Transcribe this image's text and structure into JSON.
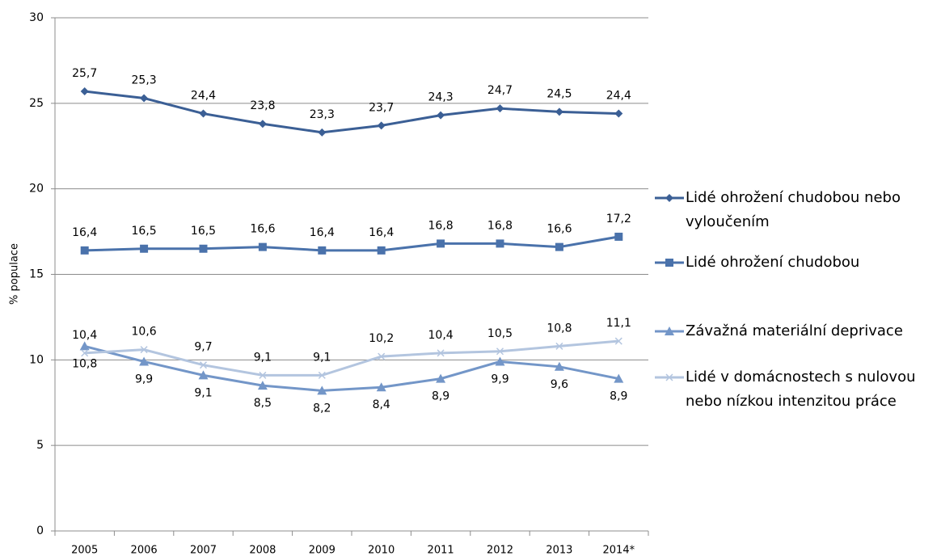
{
  "chart_data": {
    "type": "line",
    "y_label": "% populace",
    "categories": [
      "2005",
      "2006",
      "2007",
      "2008",
      "2009",
      "2010",
      "2011",
      "2012",
      "2013",
      "2014*"
    ],
    "series": [
      {
        "name": "Lidé ohrožení chudobou nebo vyloučením",
        "color": "#3b5f95",
        "marker": "diamond",
        "label_position": "above",
        "values": [
          25.7,
          25.3,
          24.4,
          23.8,
          23.3,
          23.7,
          24.3,
          24.7,
          24.5,
          24.4
        ],
        "value_labels": [
          "25,7",
          "25,3",
          "24,4",
          "23,8",
          "23,3",
          "23,7",
          "24,3",
          "24,7",
          "24,5",
          "24,4"
        ]
      },
      {
        "name": "Lidé ohrožení chudobou",
        "color": "#4a72ab",
        "marker": "square",
        "label_position": "above",
        "values": [
          16.4,
          16.5,
          16.5,
          16.6,
          16.4,
          16.4,
          16.8,
          16.8,
          16.6,
          17.2
        ],
        "value_labels": [
          "16,4",
          "16,5",
          "16,5",
          "16,6",
          "16,4",
          "16,4",
          "16,8",
          "16,8",
          "16,6",
          "17,2"
        ]
      },
      {
        "name": "Závažná materiální deprivace",
        "color": "#7396c8",
        "marker": "triangle",
        "label_position": "below",
        "values": [
          10.8,
          9.9,
          9.1,
          8.5,
          8.2,
          8.4,
          8.9,
          9.9,
          9.6,
          8.9
        ],
        "value_labels": [
          "10,8",
          "9,9",
          "9,1",
          "8,5",
          "8,2",
          "8,4",
          "8,9",
          "9,9",
          "9,6",
          "8,9"
        ]
      },
      {
        "name": "Lidé v domácnostech s nulovou nebo nízkou intenzitou práce",
        "color": "#b3c5df",
        "marker": "x",
        "label_position": "above",
        "values": [
          10.4,
          10.6,
          9.7,
          9.1,
          9.1,
          10.2,
          10.4,
          10.5,
          10.8,
          11.1
        ],
        "value_labels": [
          "10,4",
          "10,6",
          "9,7",
          "9,1",
          "9,1",
          "10,2",
          "10,4",
          "10,5",
          "10,8",
          "11,1"
        ]
      }
    ],
    "ylim": [
      0,
      30
    ],
    "yticks": [
      0,
      5,
      10,
      15,
      20,
      25,
      30
    ],
    "grid": true,
    "legend": "right"
  }
}
